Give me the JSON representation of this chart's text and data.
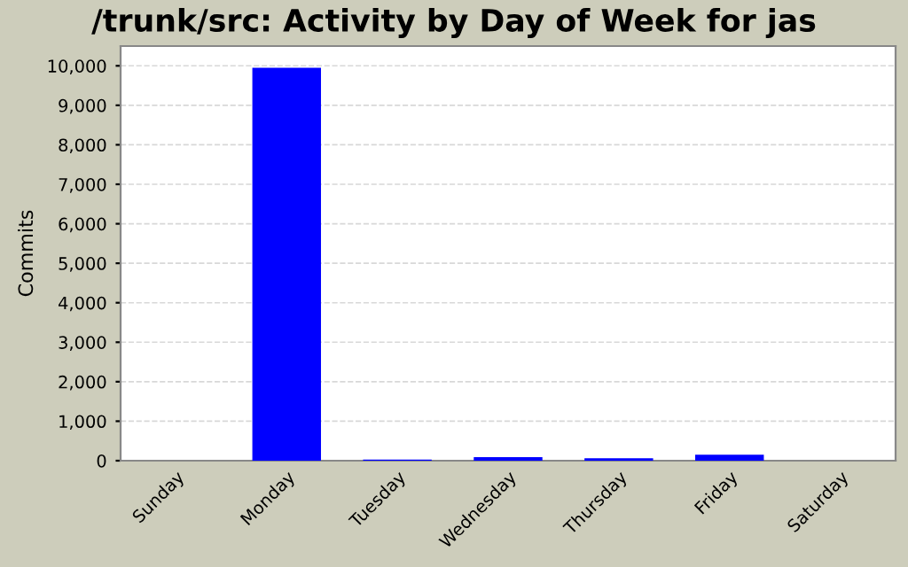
{
  "chart_data": {
    "type": "bar",
    "title": "/trunk/src: Activity by Day of Week for jas",
    "ylabel": "Commits",
    "categories": [
      "Sunday",
      "Monday",
      "Tuesday",
      "Wednesday",
      "Thursday",
      "Friday",
      "Saturday"
    ],
    "values": [
      0,
      9950,
      30,
      90,
      60,
      150,
      0
    ],
    "color": "#0000ff",
    "ylim": [
      0,
      10500
    ],
    "yticks": [
      {
        "value": 0,
        "label": "0"
      },
      {
        "value": 1000,
        "label": "1,000"
      },
      {
        "value": 2000,
        "label": "2,000"
      },
      {
        "value": 3000,
        "label": "3,000"
      },
      {
        "value": 4000,
        "label": "4,000"
      },
      {
        "value": 5000,
        "label": "5,000"
      },
      {
        "value": 6000,
        "label": "6,000"
      },
      {
        "value": 7000,
        "label": "7,000"
      },
      {
        "value": 8000,
        "label": "8,000"
      },
      {
        "value": 9000,
        "label": "9,000"
      },
      {
        "value": 10000,
        "label": "10,000"
      }
    ],
    "grid": "y",
    "legend": false
  }
}
